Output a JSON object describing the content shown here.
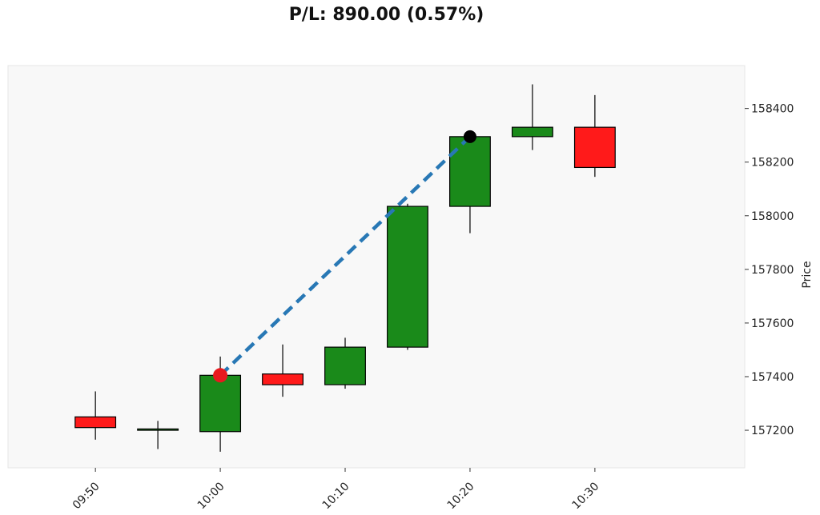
{
  "title": "P/L: 890.00 (0.57%)",
  "chart_data": {
    "type": "candlestick",
    "ylabel": "Price",
    "ylim": [
      157060,
      158560
    ],
    "xlim": [
      -2.8,
      20.8
    ],
    "y_ticks": [
      157200,
      157400,
      157600,
      157800,
      158000,
      158200,
      158400
    ],
    "x_ticks": [
      {
        "x": 0,
        "label": "09:50"
      },
      {
        "x": 4,
        "label": "10:00"
      },
      {
        "x": 8,
        "label": "10:10"
      },
      {
        "x": 12,
        "label": "10:20"
      },
      {
        "x": 16,
        "label": "10:30"
      }
    ],
    "candles": [
      {
        "x": 0,
        "open": 157250,
        "high": 157345,
        "low": 157165,
        "close": 157210
      },
      {
        "x": 2,
        "open": 157200,
        "high": 157235,
        "low": 157130,
        "close": 157205
      },
      {
        "x": 4,
        "open": 157195,
        "high": 157475,
        "low": 157120,
        "close": 157405
      },
      {
        "x": 6,
        "open": 157410,
        "high": 157520,
        "low": 157325,
        "close": 157370
      },
      {
        "x": 8,
        "open": 157370,
        "high": 157545,
        "low": 157355,
        "close": 157510
      },
      {
        "x": 10,
        "open": 157510,
        "high": 158045,
        "low": 157500,
        "close": 158035
      },
      {
        "x": 12,
        "open": 158035,
        "high": 158300,
        "low": 157935,
        "close": 158295
      },
      {
        "x": 14,
        "open": 158295,
        "high": 158490,
        "low": 158245,
        "close": 158330
      },
      {
        "x": 16,
        "open": 158330,
        "high": 158450,
        "low": 158145,
        "close": 158180
      }
    ],
    "trade": {
      "entry": {
        "x": 4,
        "price": 157405
      },
      "exit": {
        "x": 12,
        "price": 158295
      }
    },
    "colors": {
      "up": "#1a8a1a",
      "down": "#ff1a1a",
      "entry_marker": "#e8191e",
      "exit_marker": "#000000",
      "trade_line": "#2878b5",
      "plot_bg": "#f8f8f8"
    },
    "grid": false
  }
}
